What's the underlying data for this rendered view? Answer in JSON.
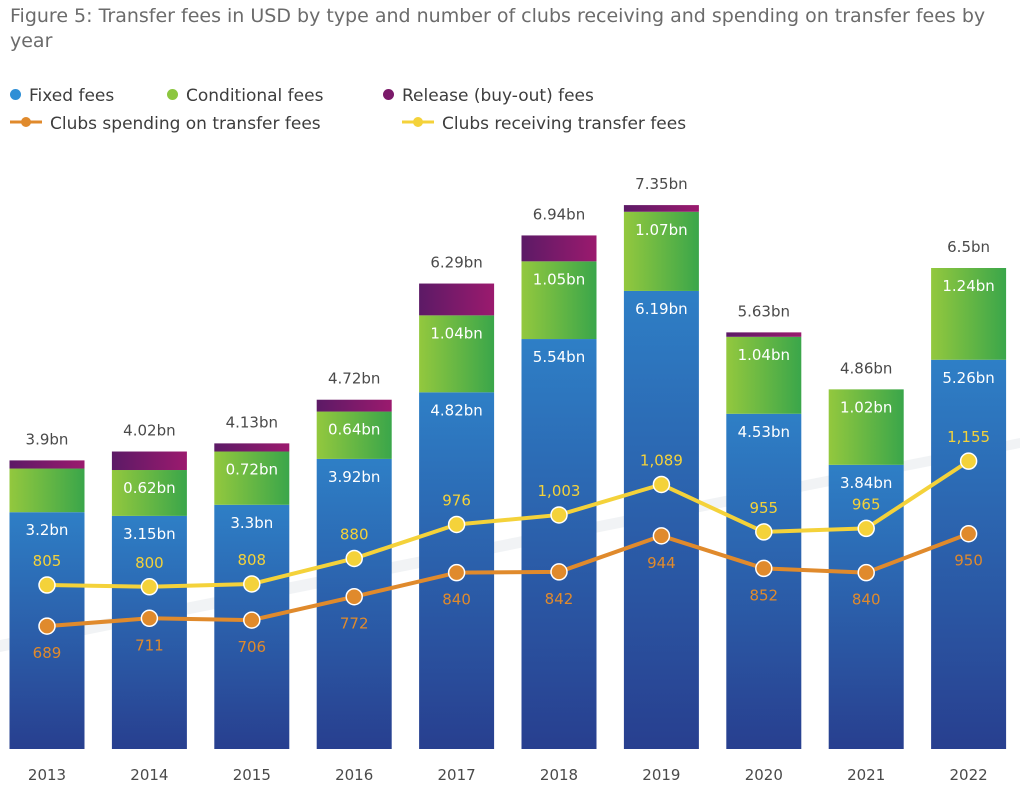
{
  "title": "Figure 5: Transfer fees in USD by type and number of clubs receiving and spending on transfer fees by year",
  "colors": {
    "fixed_top": "#2e7fc6",
    "fixed_bottom": "#283f8f",
    "conditional_left": "#93c83e",
    "conditional_right": "#3aa64a",
    "release_left": "#5c1a66",
    "release_right": "#9b1a6e",
    "spending": "#e08a2c",
    "receiving": "#f4d23a",
    "total_label": "#4a4a4a",
    "bar_label": "#ffffff"
  },
  "legend": {
    "fixed": "Fixed fees",
    "conditional": "Conditional fees",
    "release": "Release (buy-out) fees",
    "spending": "Clubs spending on transfer fees",
    "receiving": "Clubs receiving transfer fees"
  },
  "chart_data": {
    "type": "bar",
    "categories": [
      "2013",
      "2014",
      "2015",
      "2016",
      "2017",
      "2018",
      "2019",
      "2020",
      "2021",
      "2022"
    ],
    "bar_unit": "bn USD",
    "series": [
      {
        "name": "Fixed fees",
        "values": [
          3.2,
          3.15,
          3.3,
          3.92,
          4.82,
          5.54,
          6.19,
          4.53,
          3.84,
          5.26
        ],
        "labels": [
          "3.2bn",
          "3.15bn",
          "3.3bn",
          "3.92bn",
          "4.82bn",
          "5.54bn",
          "6.19bn",
          "4.53bn",
          "3.84bn",
          "5.26bn"
        ]
      },
      {
        "name": "Conditional fees",
        "values": [
          0.59,
          0.62,
          0.72,
          0.64,
          1.04,
          1.05,
          1.07,
          1.04,
          1.02,
          1.24
        ],
        "labels": [
          "",
          "0.62bn",
          "0.72bn",
          "0.64bn",
          "1.04bn",
          "1.05bn",
          "1.07bn",
          "1.04bn",
          "1.02bn",
          "1.24bn"
        ]
      },
      {
        "name": "Release (buy-out) fees",
        "values": [
          0.11,
          0.25,
          0.11,
          0.16,
          0.43,
          0.35,
          0.09,
          0.06,
          0.0,
          0.0
        ],
        "labels": [
          "",
          "",
          "",
          "",
          "",
          "",
          "",
          "",
          "",
          ""
        ]
      }
    ],
    "totals": [
      3.9,
      4.02,
      4.13,
      4.72,
      6.29,
      6.94,
      7.35,
      5.63,
      4.86,
      6.5
    ],
    "total_labels": [
      "3.9bn",
      "4.02bn",
      "4.13bn",
      "4.72bn",
      "6.29bn",
      "6.94bn",
      "7.35bn",
      "5.63bn",
      "4.86bn",
      "6.5bn"
    ],
    "lines": [
      {
        "name": "Clubs spending on transfer fees",
        "values": [
          689,
          711,
          706,
          772,
          840,
          842,
          944,
          852,
          840,
          950
        ],
        "labels": [
          "689",
          "711",
          "706",
          "772",
          "840",
          "842",
          "944",
          "852",
          "840",
          "950"
        ]
      },
      {
        "name": "Clubs receiving transfer fees",
        "values": [
          805,
          800,
          808,
          880,
          976,
          1003,
          1089,
          955,
          965,
          1155
        ],
        "labels": [
          "805",
          "800",
          "808",
          "880",
          "976",
          "1,003",
          "1,089",
          "955",
          "965",
          "1,155"
        ]
      }
    ],
    "grid": false,
    "legend_position": "top-left"
  }
}
